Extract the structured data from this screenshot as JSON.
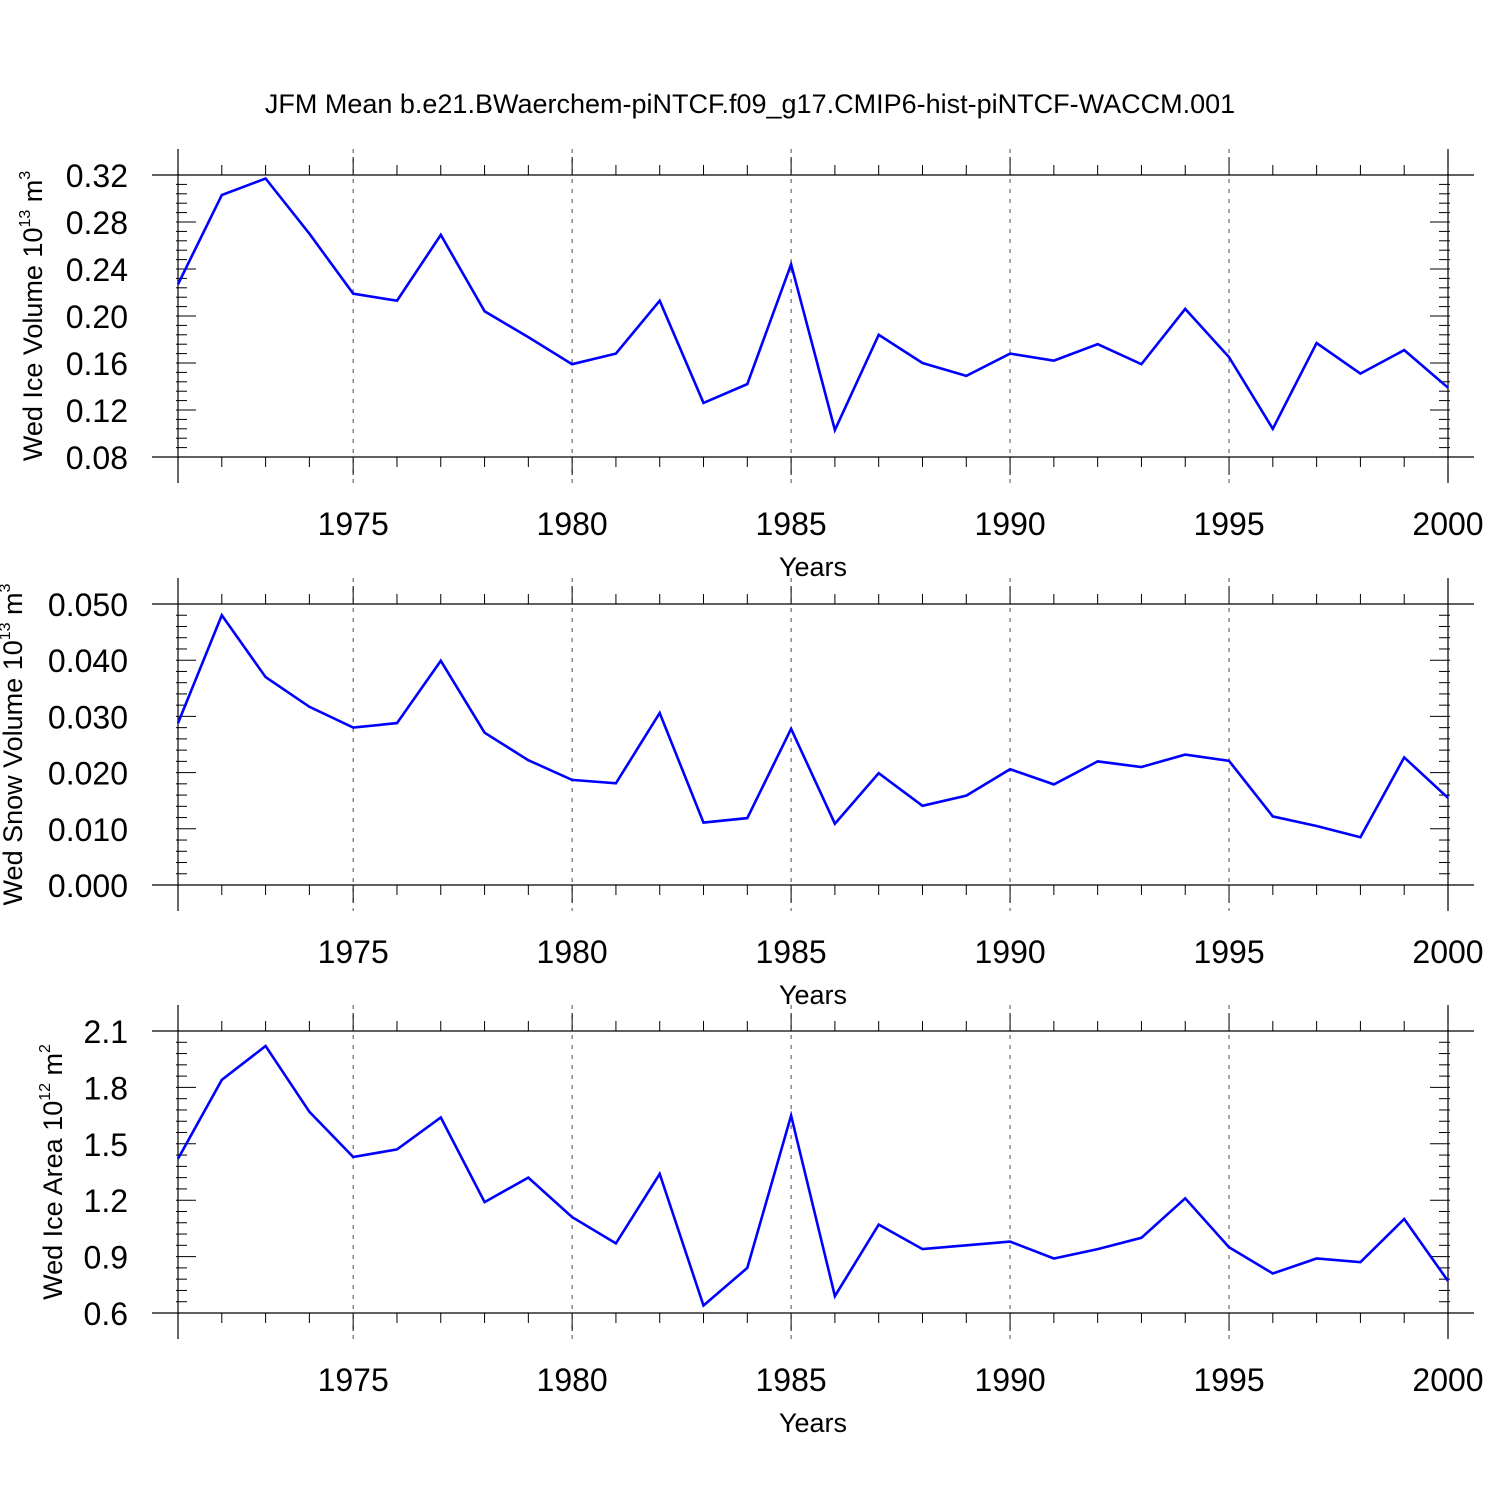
{
  "title": "JFM Mean b.e21.BWaerchem-piNTCF.f09_g17.CMIP6-hist-piNTCF-WACCM.001",
  "line_color": "#0000ff",
  "chart_data": [
    {
      "type": "line",
      "xlabel": "Years",
      "ylabel": {
        "prefix": "Wed Ice Volume 10",
        "exponent": "13",
        "unit": " m",
        "unit_exponent": "3"
      },
      "xlim": [
        1971,
        2000
      ],
      "ylim": [
        0.08,
        0.32
      ],
      "x_ticks": [
        1975,
        1980,
        1985,
        1990,
        1995,
        2000
      ],
      "y_ticks": [
        "0.08",
        "0.12",
        "0.16",
        "0.20",
        "0.24",
        "0.28",
        "0.32"
      ],
      "x": [
        1971,
        1972,
        1973,
        1974,
        1975,
        1976,
        1977,
        1978,
        1979,
        1980,
        1981,
        1982,
        1983,
        1984,
        1985,
        1986,
        1987,
        1988,
        1989,
        1990,
        1991,
        1992,
        1993,
        1994,
        1995,
        1996,
        1997,
        1998,
        1999,
        2000
      ],
      "series": [
        {
          "values": [
            0.227,
            0.303,
            0.317,
            0.27,
            0.219,
            0.213,
            0.269,
            0.204,
            0.182,
            0.159,
            0.168,
            0.213,
            0.126,
            0.142,
            0.244,
            0.103,
            0.184,
            0.16,
            0.149,
            0.168,
            0.162,
            0.176,
            0.159,
            0.206,
            0.165,
            0.104,
            0.177,
            0.151,
            0.171,
            0.139
          ]
        }
      ]
    },
    {
      "type": "line",
      "xlabel": "Years",
      "ylabel": {
        "prefix": "Wed Snow Volume 10",
        "exponent": "13",
        "unit": " m",
        "unit_exponent": "3"
      },
      "xlim": [
        1971,
        2000
      ],
      "ylim": [
        0.0,
        0.05
      ],
      "x_ticks": [
        1975,
        1980,
        1985,
        1990,
        1995,
        2000
      ],
      "y_ticks": [
        "0.000",
        "0.010",
        "0.020",
        "0.030",
        "0.040",
        "0.050"
      ],
      "x": [
        1971,
        1972,
        1973,
        1974,
        1975,
        1976,
        1977,
        1978,
        1979,
        1980,
        1981,
        1982,
        1983,
        1984,
        1985,
        1986,
        1987,
        1988,
        1989,
        1990,
        1991,
        1992,
        1993,
        1994,
        1995,
        1996,
        1997,
        1998,
        1999,
        2000
      ],
      "series": [
        {
          "values": [
            0.0288,
            0.048,
            0.037,
            0.0317,
            0.028,
            0.0288,
            0.0399,
            0.0271,
            0.0222,
            0.0187,
            0.0181,
            0.0306,
            0.0111,
            0.0119,
            0.0278,
            0.0109,
            0.0199,
            0.0141,
            0.0159,
            0.0206,
            0.0179,
            0.022,
            0.021,
            0.0232,
            0.0221,
            0.0122,
            0.0105,
            0.0085,
            0.0227,
            0.0155
          ]
        }
      ]
    },
    {
      "type": "line",
      "xlabel": "Years",
      "ylabel": {
        "prefix": "Wed Ice Area 10",
        "exponent": "12",
        "unit": " m",
        "unit_exponent": "2"
      },
      "xlim": [
        1971,
        2000
      ],
      "ylim": [
        0.6,
        2.1
      ],
      "x_ticks": [
        1975,
        1980,
        1985,
        1990,
        1995,
        2000
      ],
      "y_ticks": [
        "0.6",
        "0.9",
        "1.2",
        "1.5",
        "1.8",
        "2.1"
      ],
      "x": [
        1971,
        1972,
        1973,
        1974,
        1975,
        1976,
        1977,
        1978,
        1979,
        1980,
        1981,
        1982,
        1983,
        1984,
        1985,
        1986,
        1987,
        1988,
        1989,
        1990,
        1991,
        1992,
        1993,
        1994,
        1995,
        1996,
        1997,
        1998,
        1999,
        2000
      ],
      "series": [
        {
          "values": [
            1.42,
            1.84,
            2.02,
            1.67,
            1.43,
            1.47,
            1.64,
            1.19,
            1.32,
            1.11,
            0.97,
            1.34,
            0.64,
            0.84,
            1.65,
            0.69,
            1.07,
            0.94,
            0.96,
            0.98,
            0.89,
            0.94,
            1.0,
            1.21,
            0.95,
            0.81,
            0.89,
            0.87,
            1.1,
            0.77
          ]
        }
      ]
    }
  ]
}
